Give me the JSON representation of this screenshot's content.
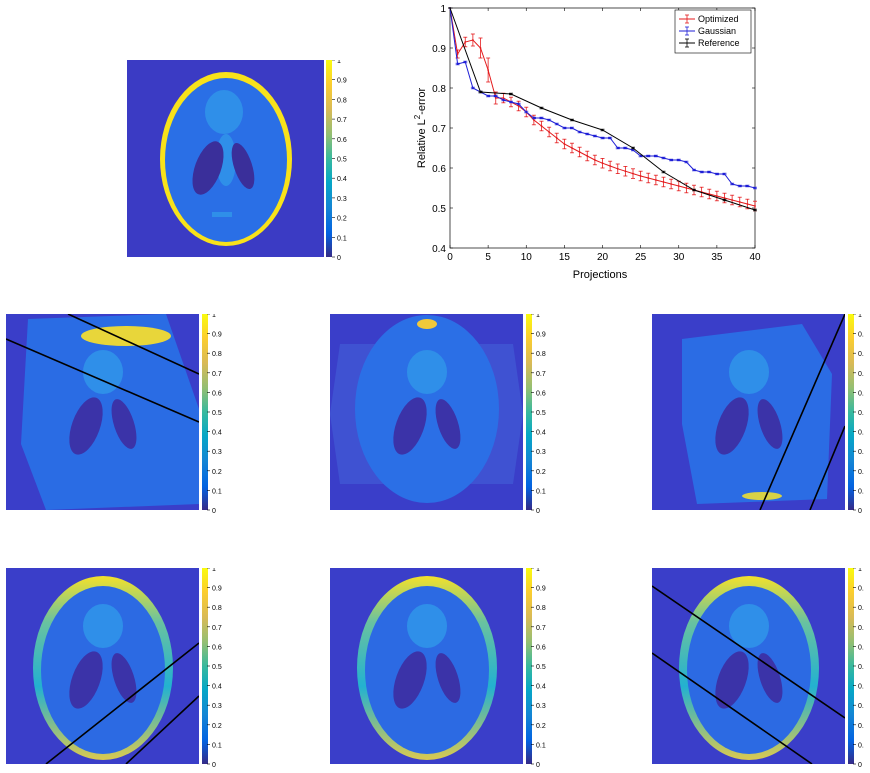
{
  "colors": {
    "optimized": "#e41a1c",
    "gaussian": "#1f1fd6",
    "reference": "#000000",
    "parula": [
      "#352a87",
      "#0363e1",
      "#1485d4",
      "#06a7c6",
      "#38b99e",
      "#92bf73",
      "#d9ba56",
      "#fcce2e",
      "#f9fb0e"
    ]
  },
  "colorbar": {
    "ticks": [
      "0",
      "0.1",
      "0.2",
      "0.3",
      "0.4",
      "0.5",
      "0.6",
      "0.7",
      "0.8",
      "0.9",
      "1"
    ],
    "ticks_truncated": [
      "0",
      "0.",
      "0.",
      "0.",
      "0.",
      "0.",
      "0.",
      "0.",
      "0.",
      "0.",
      "1"
    ]
  },
  "chart_data": [
    {
      "type": "line",
      "xlabel": "Projections",
      "ylabel": "Relative L²-error",
      "ylabel_parts": {
        "prefix": "Relative L",
        "sup": "2",
        "suffix": "-error"
      },
      "xlim": [
        0,
        40
      ],
      "ylim": [
        0.4,
        1
      ],
      "xticks": [
        "0",
        "5",
        "10",
        "15",
        "20",
        "25",
        "30",
        "35",
        "40"
      ],
      "yticks": [
        "0.4",
        "0.5",
        "0.6",
        "0.7",
        "0.8",
        "0.9",
        "1"
      ],
      "grid": false,
      "legend_position": "top-right",
      "series": [
        {
          "name": "Optimized",
          "color_key": "optimized",
          "error_bars": true,
          "x": [
            0,
            1,
            2,
            3,
            4,
            5,
            6,
            7,
            8,
            9,
            10,
            11,
            12,
            13,
            14,
            15,
            16,
            17,
            18,
            19,
            20,
            21,
            22,
            23,
            24,
            25,
            26,
            27,
            28,
            29,
            30,
            31,
            32,
            33,
            34,
            35,
            36,
            37,
            38,
            39,
            40
          ],
          "y": [
            1.0,
            0.885,
            0.915,
            0.92,
            0.9,
            0.845,
            0.775,
            0.775,
            0.765,
            0.755,
            0.74,
            0.72,
            0.705,
            0.69,
            0.675,
            0.66,
            0.65,
            0.64,
            0.63,
            0.62,
            0.612,
            0.605,
            0.598,
            0.592,
            0.586,
            0.58,
            0.575,
            0.57,
            0.565,
            0.56,
            0.555,
            0.55,
            0.545,
            0.54,
            0.535,
            0.53,
            0.525,
            0.52,
            0.515,
            0.51,
            0.505
          ],
          "err": [
            0.0,
            0.01,
            0.012,
            0.015,
            0.025,
            0.03,
            0.015,
            0.012,
            0.012,
            0.012,
            0.012,
            0.012,
            0.012,
            0.012,
            0.012,
            0.012,
            0.012,
            0.012,
            0.012,
            0.012,
            0.012,
            0.012,
            0.012,
            0.012,
            0.012,
            0.012,
            0.012,
            0.012,
            0.012,
            0.012,
            0.012,
            0.012,
            0.012,
            0.012,
            0.012,
            0.012,
            0.012,
            0.012,
            0.012,
            0.012,
            0.012
          ]
        },
        {
          "name": "Gaussian",
          "color_key": "gaussian",
          "error_bars": true,
          "x": [
            0,
            1,
            2,
            3,
            4,
            5,
            6,
            7,
            8,
            9,
            10,
            11,
            12,
            13,
            14,
            15,
            16,
            17,
            18,
            19,
            20,
            21,
            22,
            23,
            24,
            25,
            26,
            27,
            28,
            29,
            30,
            31,
            32,
            33,
            34,
            35,
            36,
            37,
            38,
            39,
            40
          ],
          "y": [
            1.0,
            0.86,
            0.865,
            0.8,
            0.79,
            0.78,
            0.78,
            0.77,
            0.765,
            0.76,
            0.74,
            0.725,
            0.725,
            0.72,
            0.71,
            0.7,
            0.7,
            0.69,
            0.685,
            0.68,
            0.675,
            0.675,
            0.65,
            0.65,
            0.645,
            0.63,
            0.63,
            0.63,
            0.625,
            0.62,
            0.62,
            0.615,
            0.595,
            0.59,
            0.59,
            0.585,
            0.585,
            0.56,
            0.555,
            0.555,
            0.55
          ],
          "err": [
            0.0,
            0.002,
            0.002,
            0.002,
            0.002,
            0.002,
            0.002,
            0.002,
            0.002,
            0.002,
            0.002,
            0.002,
            0.002,
            0.002,
            0.002,
            0.002,
            0.002,
            0.002,
            0.002,
            0.002,
            0.002,
            0.002,
            0.002,
            0.002,
            0.002,
            0.002,
            0.002,
            0.002,
            0.002,
            0.002,
            0.002,
            0.002,
            0.002,
            0.002,
            0.002,
            0.002,
            0.002,
            0.002,
            0.002,
            0.002,
            0.002
          ]
        },
        {
          "name": "Reference",
          "color_key": "reference",
          "error_bars": true,
          "x": [
            0,
            4,
            8,
            12,
            16,
            20,
            24,
            28,
            32,
            36,
            40
          ],
          "y": [
            1.0,
            0.79,
            0.785,
            0.75,
            0.72,
            0.695,
            0.65,
            0.59,
            0.545,
            0.52,
            0.495
          ],
          "err": [
            0,
            0.002,
            0.002,
            0.002,
            0.002,
            0.002,
            0.002,
            0.002,
            0.002,
            0.002,
            0.002
          ]
        }
      ]
    },
    {
      "type": "heatmap",
      "description_key": "phantom-reference",
      "clim": [
        0,
        1
      ]
    }
  ],
  "panels": [
    {
      "id": "reconstruction-1",
      "lines": 2
    },
    {
      "id": "reconstruction-2",
      "lines": 0
    },
    {
      "id": "reconstruction-3",
      "lines": 2
    },
    {
      "id": "reconstruction-4",
      "lines": 2
    },
    {
      "id": "reconstruction-5",
      "lines": 0
    },
    {
      "id": "reconstruction-6",
      "lines": 2
    }
  ]
}
